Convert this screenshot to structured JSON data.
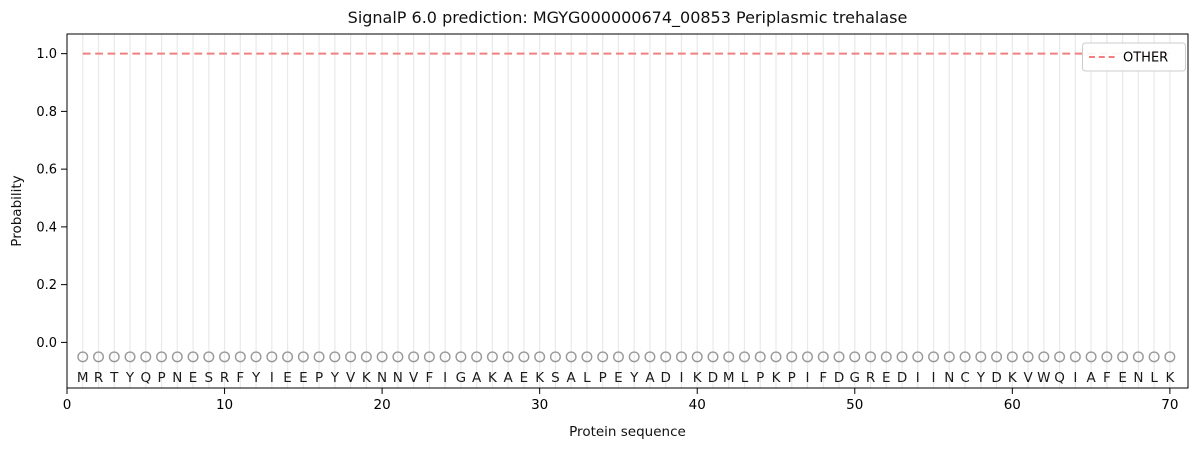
{
  "chart_data": {
    "type": "line",
    "title": "SignalP 6.0 prediction: MGYG000000674_00853 Periplasmic trehalase",
    "xlabel": "Protein sequence",
    "ylabel": "Probability",
    "legend": {
      "position": "upper right",
      "entries": [
        "OTHER"
      ]
    },
    "grid": "vertical gridline at each residue position",
    "xlim": [
      0,
      71.15
    ],
    "ylim": [
      -0.158,
      1.068
    ],
    "x_ticks": [
      0,
      10,
      20,
      30,
      40,
      50,
      60,
      70
    ],
    "y_ticks": [
      0.0,
      0.2,
      0.4,
      0.6,
      0.8,
      1.0
    ],
    "sequence": "MRTYQPNESRFYIEEPYVKNNVFIGAKAEKSALPEYADIKDMLPKPIFDGREDIINCYDKVWQIAFENLK",
    "series": [
      {
        "name": "OTHER",
        "style": "dashed",
        "color": "#f08080",
        "positions": [
          1,
          2,
          3,
          4,
          5,
          6,
          7,
          8,
          9,
          10,
          11,
          12,
          13,
          14,
          15,
          16,
          17,
          18,
          19,
          20,
          21,
          22,
          23,
          24,
          25,
          26,
          27,
          28,
          29,
          30,
          31,
          32,
          33,
          34,
          35,
          36,
          37,
          38,
          39,
          40,
          41,
          42,
          43,
          44,
          45,
          46,
          47,
          48,
          49,
          50,
          51,
          52,
          53,
          54,
          55,
          56,
          57,
          58,
          59,
          60,
          61,
          62,
          63,
          64,
          65,
          66,
          67,
          68,
          69,
          70
        ],
        "values": [
          1.0,
          1.0,
          1.0,
          1.0,
          1.0,
          1.0,
          1.0,
          1.0,
          1.0,
          1.0,
          1.0,
          1.0,
          1.0,
          1.0,
          1.0,
          1.0,
          1.0,
          1.0,
          1.0,
          1.0,
          1.0,
          1.0,
          1.0,
          1.0,
          1.0,
          1.0,
          1.0,
          1.0,
          1.0,
          1.0,
          1.0,
          1.0,
          1.0,
          1.0,
          1.0,
          1.0,
          1.0,
          1.0,
          1.0,
          1.0,
          1.0,
          1.0,
          1.0,
          1.0,
          1.0,
          1.0,
          1.0,
          1.0,
          1.0,
          1.0,
          1.0,
          1.0,
          1.0,
          1.0,
          1.0,
          1.0,
          1.0,
          1.0,
          1.0,
          1.0,
          1.0,
          1.0,
          1.0,
          1.0,
          1.0,
          1.0,
          1.0,
          1.0,
          1.0,
          1.0
        ]
      }
    ],
    "residue_markers": {
      "shape": "open-circle",
      "y_value": -0.05,
      "edge_color": "#999999"
    },
    "colors": {
      "grid": "#e9e9e9",
      "spine": "#000000",
      "tick_text": "#000000",
      "residue_letter": "#1a1a1a",
      "legend_border": "#cccccc",
      "background": "#ffffff"
    }
  }
}
